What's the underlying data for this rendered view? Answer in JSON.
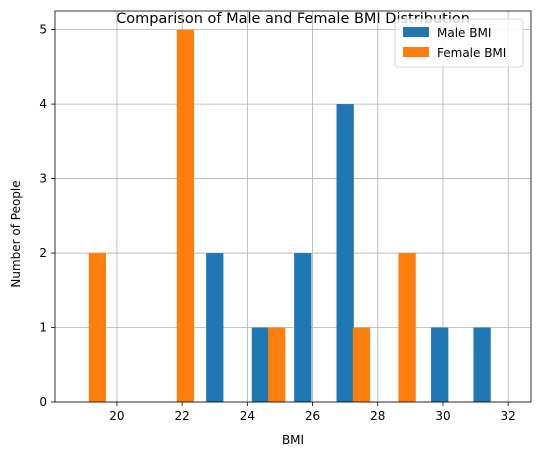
{
  "chart_data": {
    "type": "bar",
    "title": "Comparison of Male and Female BMI Distribution",
    "xlabel": "BMI",
    "ylabel": "Number of People",
    "xlim": [
      18.1,
      32.7
    ],
    "ylim": [
      0,
      5.25
    ],
    "x_ticks": [
      20,
      22,
      24,
      26,
      28,
      30,
      32
    ],
    "y_ticks": [
      0,
      1,
      2,
      3,
      4,
      5
    ],
    "grid": true,
    "legend_position": "upper-right",
    "bar_width": 0.53,
    "series": [
      {
        "name": "Male BMI",
        "color": "#1f77b4",
        "bars": [
          {
            "x": 23.0,
            "value": 2
          },
          {
            "x": 24.4,
            "value": 1
          },
          {
            "x": 25.7,
            "value": 2
          },
          {
            "x": 27.0,
            "value": 4
          },
          {
            "x": 29.9,
            "value": 1
          },
          {
            "x": 31.2,
            "value": 1
          }
        ]
      },
      {
        "name": "Female BMI",
        "color": "#ff7f0e",
        "bars": [
          {
            "x": 19.4,
            "value": 2
          },
          {
            "x": 22.1,
            "value": 5
          },
          {
            "x": 24.9,
            "value": 1
          },
          {
            "x": 27.5,
            "value": 1
          },
          {
            "x": 28.9,
            "value": 2
          }
        ]
      }
    ]
  }
}
